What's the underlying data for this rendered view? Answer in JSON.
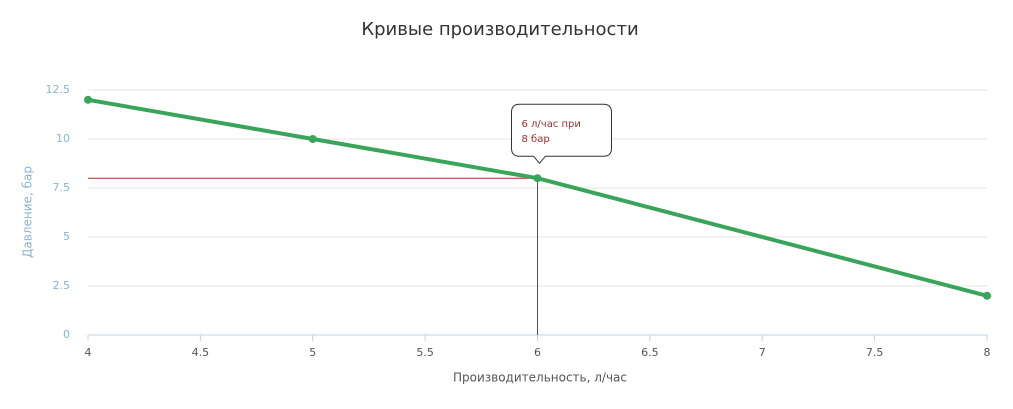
{
  "chart_data": {
    "type": "line",
    "title": "Кривые производительности",
    "x_label": "Производительность, л/час",
    "y_label": "Давление, бар",
    "x": [
      4,
      5,
      6,
      8
    ],
    "series": [
      {
        "name": "Давление",
        "color": "#3aa55a",
        "values": [
          12,
          10,
          8,
          2
        ]
      }
    ],
    "xlim": [
      4,
      8
    ],
    "xticks": [
      4,
      4.5,
      5,
      5.5,
      6,
      6.5,
      7,
      7.5,
      8
    ],
    "ylim": [
      0,
      12.5
    ],
    "yticks": [
      0,
      2.5,
      5,
      7.5,
      10,
      12.5
    ],
    "grid": true,
    "annotation": {
      "text": [
        "6 л/час при",
        "8 бар"
      ],
      "x": 6,
      "y": 8,
      "color": "#a03030"
    }
  }
}
